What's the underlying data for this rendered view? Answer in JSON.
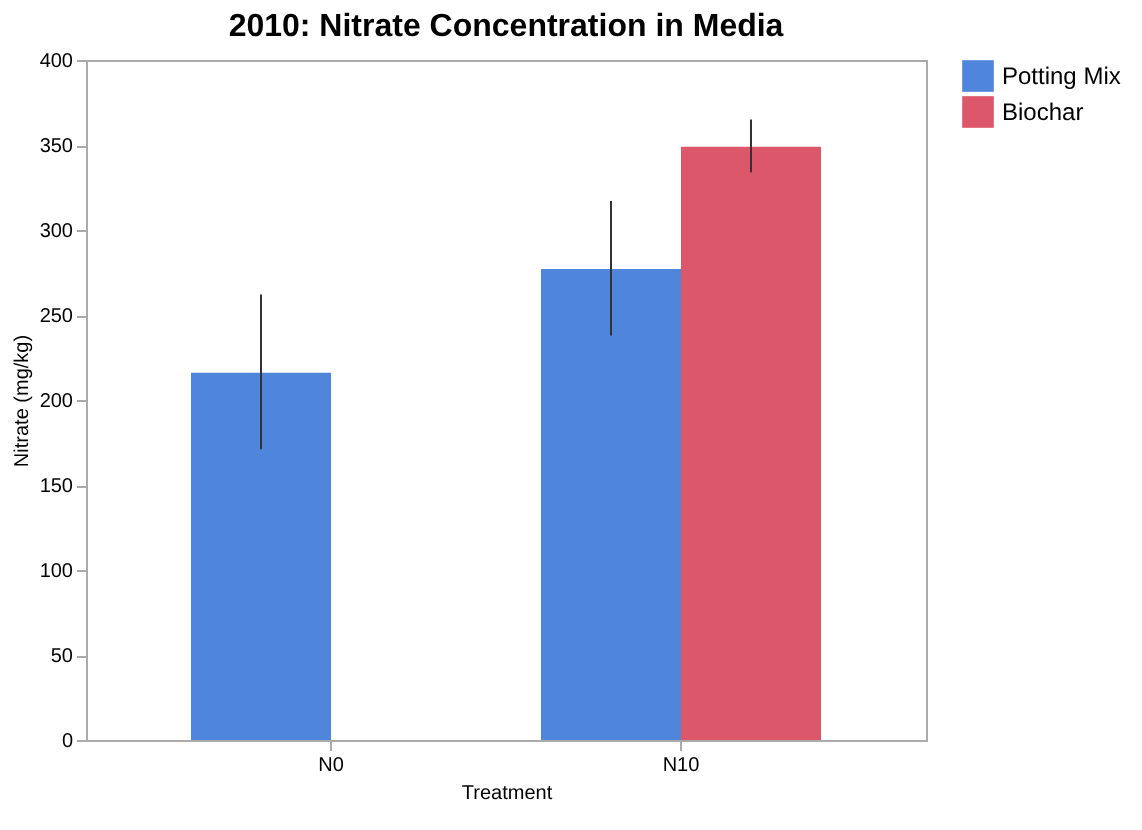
{
  "chart_data": {
    "type": "bar",
    "title": "2010: Nitrate Concentration in Media",
    "xlabel": "Treatment",
    "ylabel": "Nitrate (mg/kg)",
    "categories": [
      "N0",
      "N10"
    ],
    "series": [
      {
        "name": "Potting Mix",
        "color": "#4f86dc",
        "values": [
          216,
          277
        ],
        "errors": [
          [
            171,
            262
          ],
          [
            238,
            317
          ]
        ]
      },
      {
        "name": "Biochar",
        "color": "#dc5769",
        "values": [
          null,
          349
        ],
        "errors": [
          null,
          [
            334,
            365
          ]
        ]
      }
    ],
    "ylim": [
      0,
      400
    ],
    "yticks": [
      0,
      50,
      100,
      150,
      200,
      250,
      300,
      350,
      400
    ],
    "grid": false,
    "legend": "top right"
  }
}
